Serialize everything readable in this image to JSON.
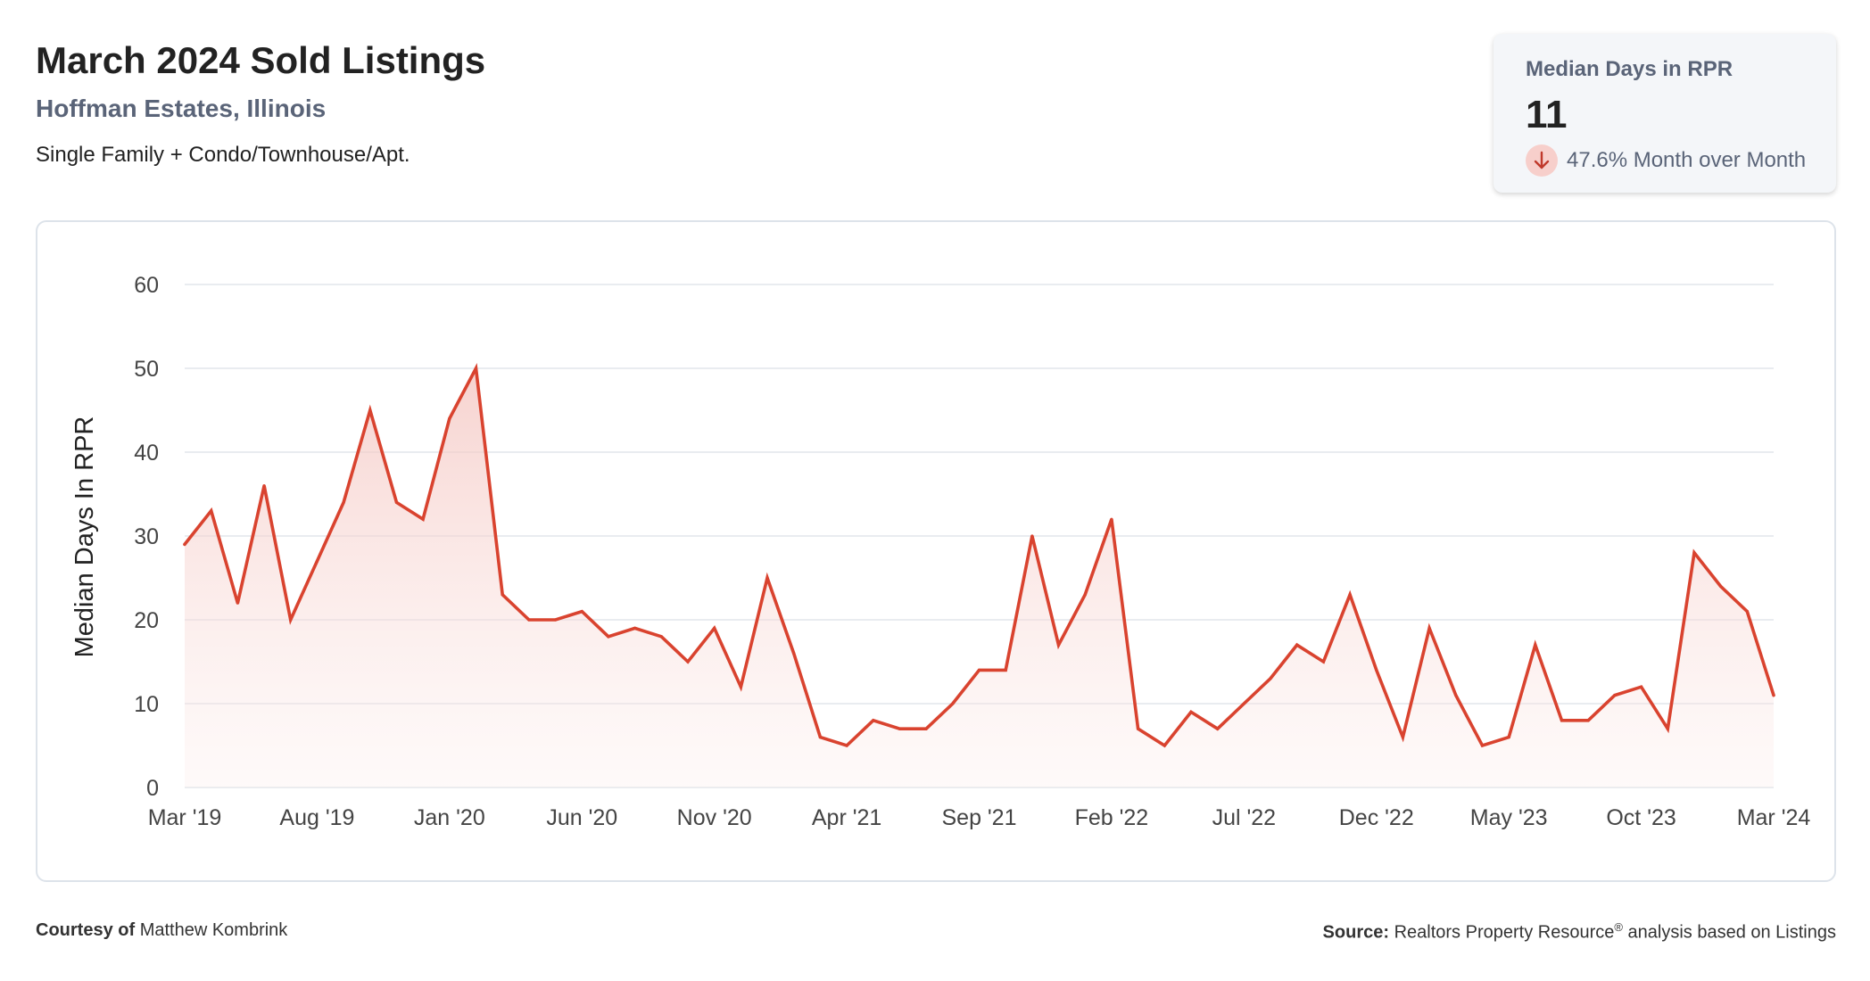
{
  "header": {
    "title": "March 2024 Sold Listings",
    "location": "Hoffman Estates, Illinois",
    "property_types": "Single Family + Condo/Townhouse/Apt."
  },
  "metric_card": {
    "label": "Median Days in RPR",
    "value": "11",
    "change_icon": "arrow-down-icon",
    "change_text": "47.6% Month over Month"
  },
  "footer": {
    "courtesy_label": "Courtesy of",
    "courtesy_name": "Matthew Kombrink",
    "source_label": "Source:",
    "source_name": "Realtors Property Resource",
    "source_mark": "®",
    "source_rest": "analysis based on Listings"
  },
  "colors": {
    "line": "#d9432f",
    "fill_top": "#f6cfcb",
    "grid": "#e2e6eb",
    "axis_text": "#444444"
  },
  "chart_data": {
    "type": "area",
    "ylabel": "Median Days In RPR",
    "xlabel": "",
    "ylim": [
      0,
      60
    ],
    "yticks": [
      0,
      10,
      20,
      30,
      40,
      50,
      60
    ],
    "grid": true,
    "x_tick_labels": [
      "Mar '19",
      "Aug '19",
      "Jan '20",
      "Jun '20",
      "Nov '20",
      "Apr '21",
      "Sep '21",
      "Feb '22",
      "Jul '22",
      "Dec '22",
      "May '23",
      "Oct '23",
      "Mar '24"
    ],
    "x_tick_every_months": 5,
    "x": [
      "Mar '19",
      "Apr '19",
      "May '19",
      "Jun '19",
      "Jul '19",
      "Aug '19",
      "Sep '19",
      "Oct '19",
      "Nov '19",
      "Dec '19",
      "Jan '20",
      "Feb '20",
      "Mar '20",
      "Apr '20",
      "May '20",
      "Jun '20",
      "Jul '20",
      "Aug '20",
      "Sep '20",
      "Oct '20",
      "Nov '20",
      "Dec '20",
      "Jan '21",
      "Feb '21",
      "Mar '21",
      "Apr '21",
      "May '21",
      "Jun '21",
      "Jul '21",
      "Aug '21",
      "Sep '21",
      "Oct '21",
      "Nov '21",
      "Dec '21",
      "Jan '22",
      "Feb '22",
      "Mar '22",
      "Apr '22",
      "May '22",
      "Jun '22",
      "Jul '22",
      "Aug '22",
      "Sep '22",
      "Oct '22",
      "Nov '22",
      "Dec '22",
      "Jan '23",
      "Feb '23",
      "Mar '23",
      "Apr '23",
      "May '23",
      "Jun '23",
      "Jul '23",
      "Aug '23",
      "Sep '23",
      "Oct '23",
      "Nov '23",
      "Dec '23",
      "Jan '24",
      "Feb '24",
      "Mar '24"
    ],
    "series": [
      {
        "values": [
          29,
          33,
          22,
          36,
          20,
          27,
          34,
          45,
          34,
          32,
          44,
          50,
          23,
          20,
          20,
          21,
          18,
          19,
          18,
          15,
          19,
          12,
          25,
          16,
          6,
          5,
          8,
          7,
          7,
          10,
          14,
          14,
          30,
          17,
          23,
          32,
          7,
          5,
          9,
          7,
          10,
          13,
          17,
          15,
          23,
          14,
          6,
          19,
          11,
          5,
          6,
          17,
          8,
          8,
          11,
          12,
          7,
          28,
          24,
          21,
          11
        ]
      }
    ]
  }
}
